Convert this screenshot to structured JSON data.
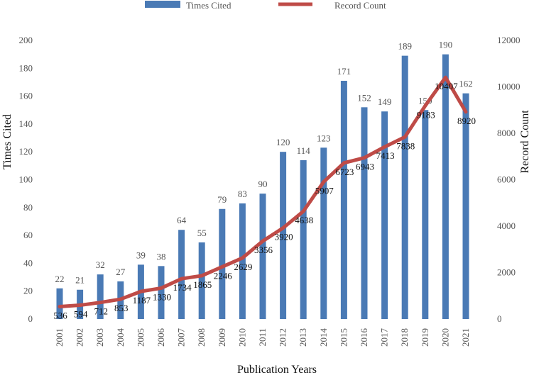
{
  "chart_data": {
    "type": "bar+line",
    "xlabel": "Publication Years",
    "ylabel_left": "Times Cited",
    "ylabel_right": "Record Count",
    "categories": [
      "2001",
      "2002",
      "2003",
      "2004",
      "2005",
      "2006",
      "2007",
      "2008",
      "2009",
      "2010",
      "2011",
      "2012",
      "2013",
      "2014",
      "2015",
      "2016",
      "2017",
      "2018",
      "2019",
      "2020",
      "2021"
    ],
    "series": [
      {
        "name": "Times Cited",
        "kind": "bar",
        "axis": "left",
        "color": "#4a7ab5",
        "values": [
          22,
          21,
          32,
          27,
          39,
          38,
          64,
          55,
          79,
          83,
          90,
          120,
          114,
          123,
          171,
          152,
          149,
          189,
          150,
          190,
          162
        ],
        "labels": [
          "22",
          "21",
          "32",
          "27",
          "39",
          "38",
          "64",
          "55",
          "79",
          "83",
          "90",
          "120",
          "114",
          "123",
          "171",
          "152",
          "149",
          "189",
          "150",
          "190",
          "162"
        ]
      },
      {
        "name": "Record Count",
        "kind": "line",
        "axis": "right",
        "color": "#bf4b47",
        "values": [
          536,
          594,
          712,
          853,
          1187,
          1330,
          1734,
          1865,
          2246,
          2629,
          3356,
          3920,
          4638,
          5907,
          6723,
          6943,
          7413,
          7838,
          9183,
          10407,
          8920
        ],
        "labels": [
          "536",
          "594",
          "712",
          "853",
          "1187",
          "1330",
          "1734",
          "1865",
          "2246",
          "2629",
          "3356",
          "3920",
          "4638",
          "5907",
          "6723",
          "6943",
          "7413",
          "7838",
          "9183",
          "10407",
          "8920"
        ]
      }
    ],
    "ylim_left": [
      0,
      200
    ],
    "yticks_left": [
      "0",
      "20",
      "40",
      "60",
      "80",
      "100",
      "120",
      "140",
      "160",
      "180",
      "200"
    ],
    "ylim_right": [
      0,
      12000
    ],
    "yticks_right": [
      "0",
      "2000",
      "4000",
      "6000",
      "8000",
      "10000",
      "12000"
    ],
    "grid": false,
    "legend": "top-center"
  }
}
